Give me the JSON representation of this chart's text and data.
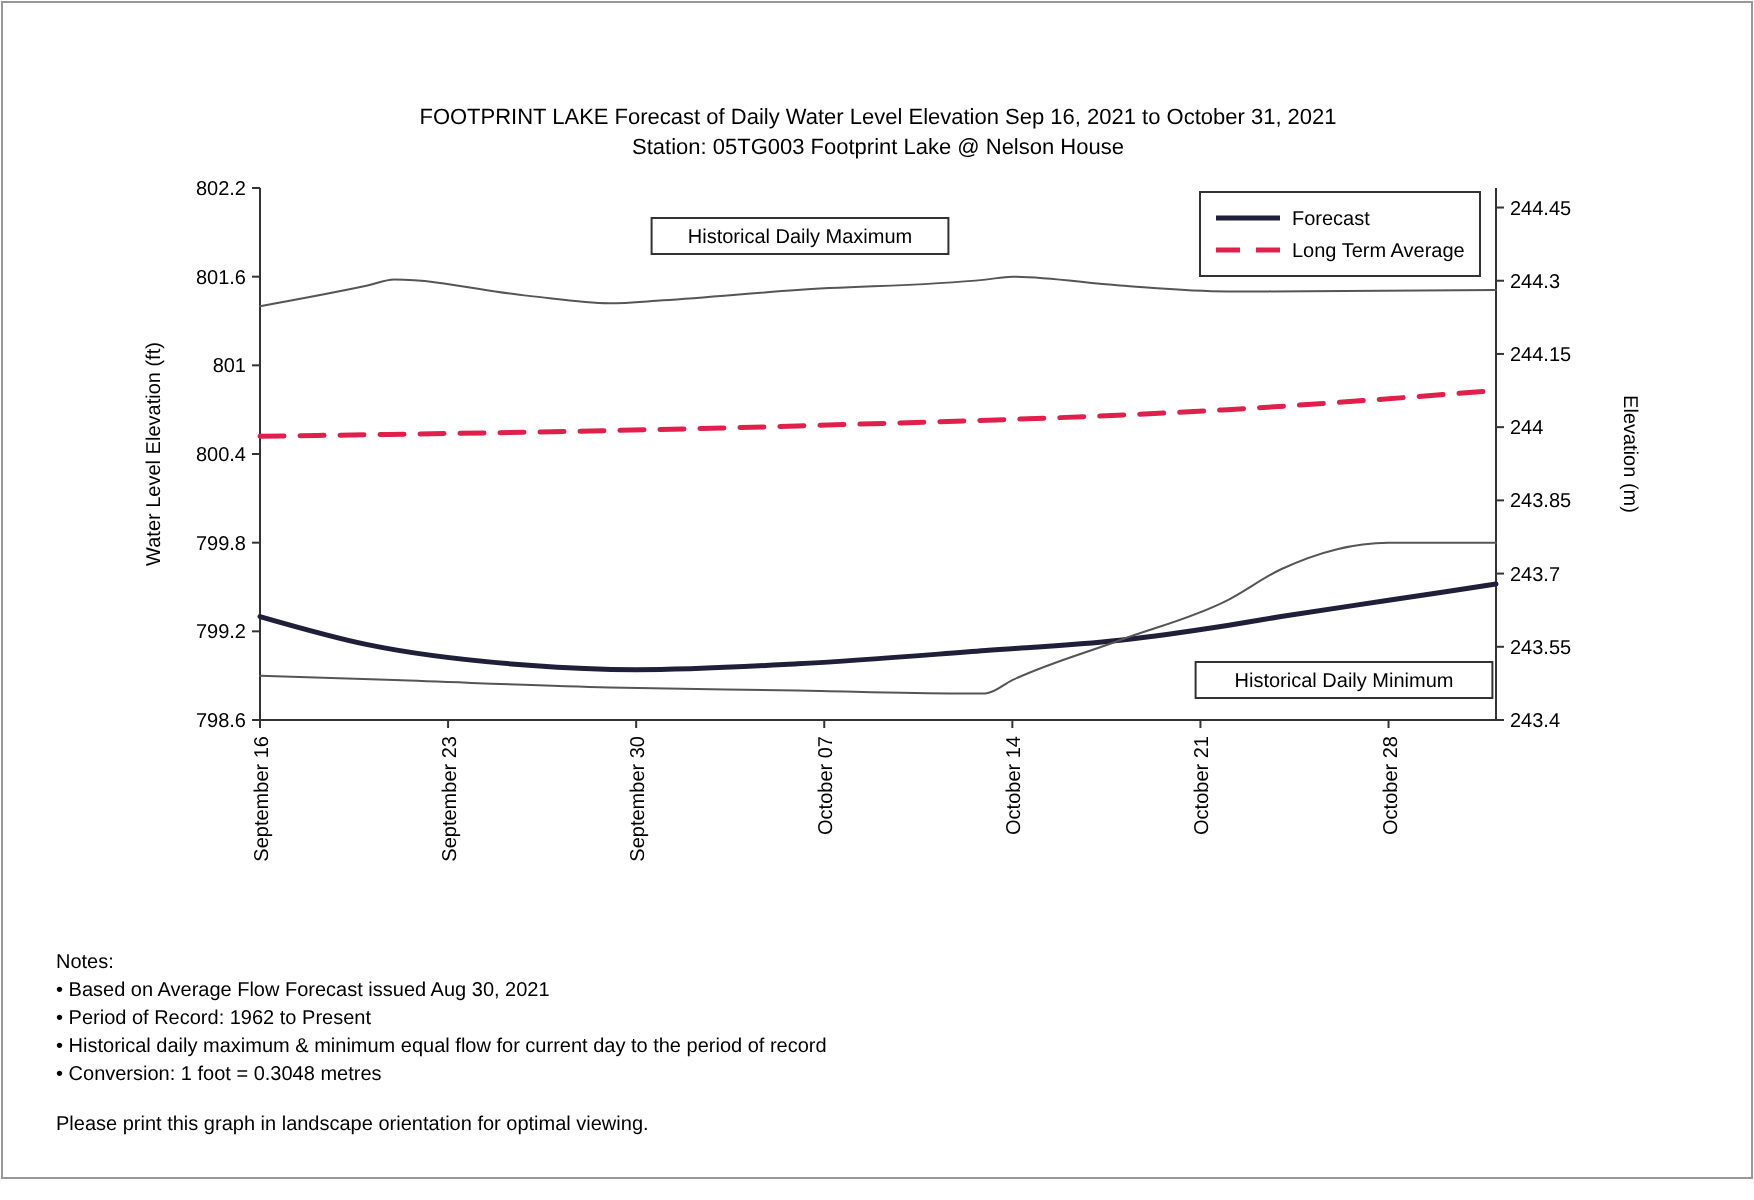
{
  "chart_data": {
    "type": "line",
    "title": "FOOTPRINT LAKE Forecast of Daily Water Level Elevation Sep 16, 2021 to October 31, 2021",
    "subtitle": "Station: 05TG003 Footprint Lake @ Nelson House",
    "ylabel": "Water Level Elevation (ft)",
    "y2label": "Elevation (m)",
    "xlim": [
      "2021-09-16",
      "2021-11-01"
    ],
    "xticks": [
      {
        "value": "2021-09-16",
        "label": "September 16"
      },
      {
        "value": "2021-09-23",
        "label": "September 23"
      },
      {
        "value": "2021-09-30",
        "label": "September 30"
      },
      {
        "value": "2021-10-07",
        "label": "October 07"
      },
      {
        "value": "2021-10-14",
        "label": "October 14"
      },
      {
        "value": "2021-10-21",
        "label": "October 21"
      },
      {
        "value": "2021-10-28",
        "label": "October 28"
      }
    ],
    "ylim": [
      798.6,
      802.2
    ],
    "yticks": [
      798.6,
      799.2,
      799.8,
      800.4,
      801.0,
      801.6,
      802.2
    ],
    "y2lim": [
      243.4,
      244.49
    ],
    "y2ticks": [
      243.4,
      243.55,
      243.7,
      243.85,
      244.0,
      244.15,
      244.3,
      244.45
    ],
    "legend": "top right",
    "grid": false,
    "marker": "none",
    "series": [
      {
        "name": "Forecast",
        "color": "#1f1f3a",
        "x": [
          "2021-09-16",
          "2021-09-20",
          "2021-09-26",
          "2021-09-30",
          "2021-10-06",
          "2021-10-13",
          "2021-10-18",
          "2021-10-22",
          "2021-10-24",
          "2021-10-28",
          "2021-11-01"
        ],
        "values": [
          799.3,
          799.11,
          798.97,
          798.94,
          798.98,
          799.07,
          799.14,
          799.24,
          799.3,
          799.41,
          799.52
        ]
      },
      {
        "name": "Long Term Average",
        "color": "#e0204a",
        "line_style": "dashed",
        "x": [
          "2021-09-16",
          "2021-10-06",
          "2021-10-22",
          "2021-11-01"
        ],
        "values": [
          800.52,
          800.59,
          800.7,
          800.83
        ]
      },
      {
        "color": "#555555",
        "x": [
          "2021-09-16",
          "2021-09-20",
          "2021-09-21",
          "2021-09-26",
          "2021-09-29",
          "2021-10-01",
          "2021-10-06",
          "2021-10-13",
          "2021-10-14",
          "2021-10-18",
          "2021-10-22",
          "2021-11-01"
        ],
        "values": [
          801.4,
          801.54,
          801.58,
          801.47,
          801.42,
          801.44,
          801.51,
          801.58,
          801.6,
          801.54,
          801.5,
          801.51
        ]
      },
      {
        "color": "#555555",
        "x": [
          "2021-09-16",
          "2021-09-21",
          "2021-09-29",
          "2021-10-06",
          "2021-10-12",
          "2021-10-13",
          "2021-10-14",
          "2021-10-18",
          "2021-10-22",
          "2021-10-24",
          "2021-10-28",
          "2021-11-01"
        ],
        "values": [
          798.9,
          798.87,
          798.82,
          798.8,
          798.78,
          798.78,
          798.87,
          799.14,
          799.41,
          799.62,
          799.8,
          799.8
        ]
      }
    ],
    "annotations": [
      "Historical Daily Maximum",
      "Historical Daily Minimum",
      "Notes:",
      "• Based on Average Flow Forecast issued Aug 30, 2021",
      "• Period of Record: 1962 to Present",
      "• Historical daily maximum & minimum equal flow for current day to the period of record",
      "• Conversion: 1 foot = 0.3048 metres",
      "Please print this graph in landscape orientation for optimal viewing."
    ]
  }
}
